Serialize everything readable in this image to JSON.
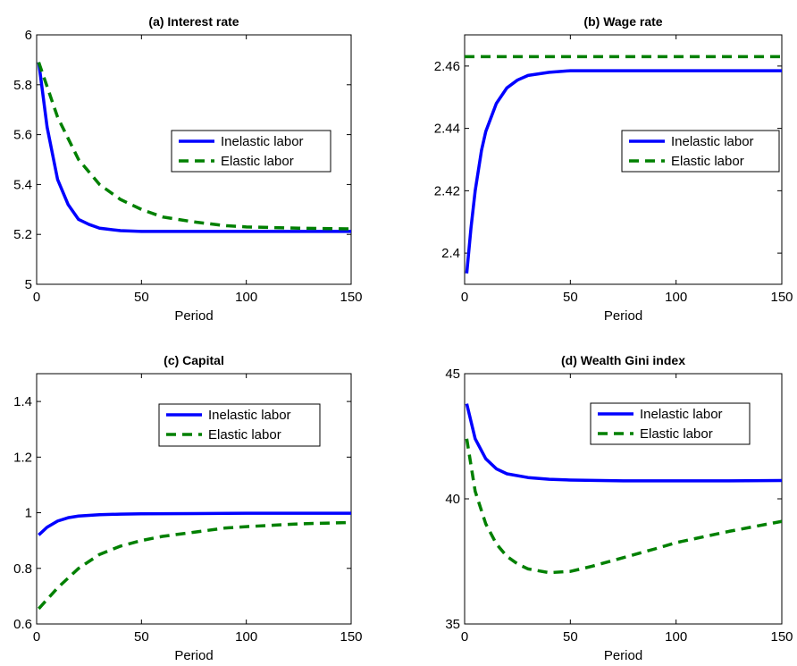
{
  "chart_data": [
    {
      "type": "line",
      "title": "(a) Interest rate",
      "xlabel": "Period",
      "ylabel": "",
      "xlim": [
        0,
        150
      ],
      "ylim": [
        5,
        6
      ],
      "xticks": [
        0,
        50,
        100,
        150
      ],
      "yticks": [
        5,
        5.2,
        5.4,
        5.6,
        5.8,
        6
      ],
      "ytick_labels": [
        "5",
        "5.2",
        "5.4",
        "5.6",
        "5.8",
        "6"
      ],
      "grid": false,
      "legend_position": "right",
      "series": [
        {
          "name": "Inelastic labor",
          "color": "#0000ff",
          "dash": "solid",
          "x": [
            1,
            5,
            10,
            15,
            20,
            25,
            30,
            40,
            50,
            75,
            100,
            125,
            150
          ],
          "y": [
            5.89,
            5.63,
            5.42,
            5.32,
            5.26,
            5.24,
            5.225,
            5.215,
            5.212,
            5.212,
            5.212,
            5.212,
            5.212
          ]
        },
        {
          "name": "Elastic labor",
          "color": "#008000",
          "dash": "dashed",
          "x": [
            1,
            10,
            20,
            30,
            40,
            50,
            60,
            75,
            90,
            100,
            125,
            150
          ],
          "y": [
            5.89,
            5.67,
            5.5,
            5.4,
            5.34,
            5.3,
            5.27,
            5.25,
            5.235,
            5.23,
            5.225,
            5.222
          ]
        }
      ]
    },
    {
      "type": "line",
      "title": "(b) Wage rate",
      "xlabel": "Period",
      "ylabel": "",
      "xlim": [
        0,
        150
      ],
      "ylim": [
        2.39,
        2.47
      ],
      "xticks": [
        0,
        50,
        100,
        150
      ],
      "yticks": [
        2.4,
        2.42,
        2.44,
        2.46
      ],
      "ytick_labels": [
        "2.4",
        "2.42",
        "2.44",
        "2.46"
      ],
      "grid": false,
      "legend_position": "right",
      "series": [
        {
          "name": "Inelastic labor",
          "color": "#0000ff",
          "dash": "solid",
          "x": [
            1,
            3,
            5,
            8,
            10,
            15,
            20,
            25,
            30,
            40,
            50,
            75,
            100,
            125,
            150
          ],
          "y": [
            2.3935,
            2.408,
            2.42,
            2.433,
            2.439,
            2.448,
            2.453,
            2.4555,
            2.457,
            2.458,
            2.4585,
            2.4585,
            2.4585,
            2.4585,
            2.4585
          ]
        },
        {
          "name": "Elastic labor",
          "color": "#008000",
          "dash": "dashed",
          "x": [
            0,
            150
          ],
          "y": [
            2.463,
            2.463
          ]
        }
      ]
    },
    {
      "type": "line",
      "title": "(c) Capital",
      "xlabel": "Period",
      "ylabel": "",
      "xlim": [
        0,
        150
      ],
      "ylim": [
        0.6,
        1.5
      ],
      "xticks": [
        0,
        50,
        100,
        150
      ],
      "yticks": [
        0.6,
        0.8,
        1,
        1.2,
        1.4
      ],
      "ytick_labels": [
        "0.6",
        "0.8",
        "1",
        "1.2",
        "1.4"
      ],
      "grid": false,
      "legend_position": "top-right",
      "series": [
        {
          "name": "Inelastic labor",
          "color": "#0000ff",
          "dash": "solid",
          "x": [
            1,
            5,
            10,
            15,
            20,
            30,
            40,
            50,
            75,
            100,
            125,
            150
          ],
          "y": [
            0.92,
            0.948,
            0.97,
            0.982,
            0.988,
            0.993,
            0.995,
            0.996,
            0.997,
            0.998,
            0.998,
            0.998
          ]
        },
        {
          "name": "Elastic labor",
          "color": "#008000",
          "dash": "dashed",
          "x": [
            1,
            10,
            20,
            30,
            40,
            50,
            60,
            75,
            90,
            100,
            125,
            150
          ],
          "y": [
            0.655,
            0.73,
            0.8,
            0.85,
            0.88,
            0.9,
            0.915,
            0.93,
            0.945,
            0.95,
            0.96,
            0.965
          ]
        }
      ]
    },
    {
      "type": "line",
      "title": "(d) Wealth Gini index",
      "xlabel": "Period",
      "ylabel": "",
      "xlim": [
        0,
        150
      ],
      "ylim": [
        35,
        45
      ],
      "xticks": [
        0,
        50,
        100,
        150
      ],
      "yticks": [
        35,
        40,
        45
      ],
      "ytick_labels": [
        "35",
        "40",
        "45"
      ],
      "grid": false,
      "legend_position": "top-right",
      "series": [
        {
          "name": "Inelastic labor",
          "color": "#0000ff",
          "dash": "solid",
          "x": [
            1,
            5,
            10,
            15,
            20,
            30,
            40,
            50,
            75,
            100,
            125,
            150
          ],
          "y": [
            43.8,
            42.4,
            41.6,
            41.2,
            41.0,
            40.85,
            40.78,
            40.75,
            40.72,
            40.72,
            40.72,
            40.73
          ]
        },
        {
          "name": "Elastic labor",
          "color": "#008000",
          "dash": "dashed",
          "x": [
            1,
            5,
            10,
            15,
            20,
            25,
            30,
            40,
            50,
            60,
            75,
            90,
            100,
            125,
            150
          ],
          "y": [
            42.4,
            40.3,
            39.0,
            38.2,
            37.7,
            37.4,
            37.2,
            37.05,
            37.1,
            37.3,
            37.65,
            38.0,
            38.25,
            38.7,
            39.1
          ]
        }
      ]
    }
  ]
}
